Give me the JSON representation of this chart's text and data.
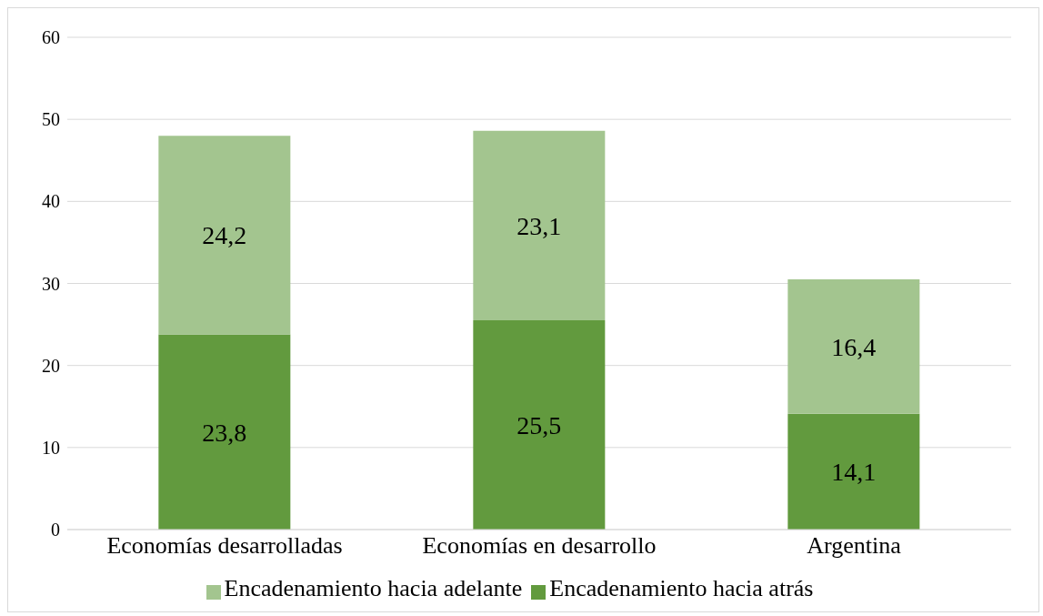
{
  "chart_data": {
    "type": "bar",
    "stacked": true,
    "categories": [
      "Economías desarrolladas",
      "Economías en desarrollo",
      "Argentina"
    ],
    "series": [
      {
        "name": "Encadenamiento hacia atrás",
        "color": "#629a3e",
        "values": [
          23.8,
          25.5,
          14.1
        ],
        "value_labels": [
          "23,8",
          "25,5",
          "14,1"
        ]
      },
      {
        "name": "Encadenamiento hacia adelante",
        "color": "#a3c58f",
        "values": [
          24.2,
          23.1,
          16.4
        ],
        "value_labels": [
          "24,2",
          "23,1",
          "16,4"
        ]
      }
    ],
    "ylim": [
      0,
      60
    ],
    "yticks": [
      0,
      10,
      20,
      30,
      40,
      50,
      60
    ],
    "grid": "y",
    "legend": "bottom"
  }
}
